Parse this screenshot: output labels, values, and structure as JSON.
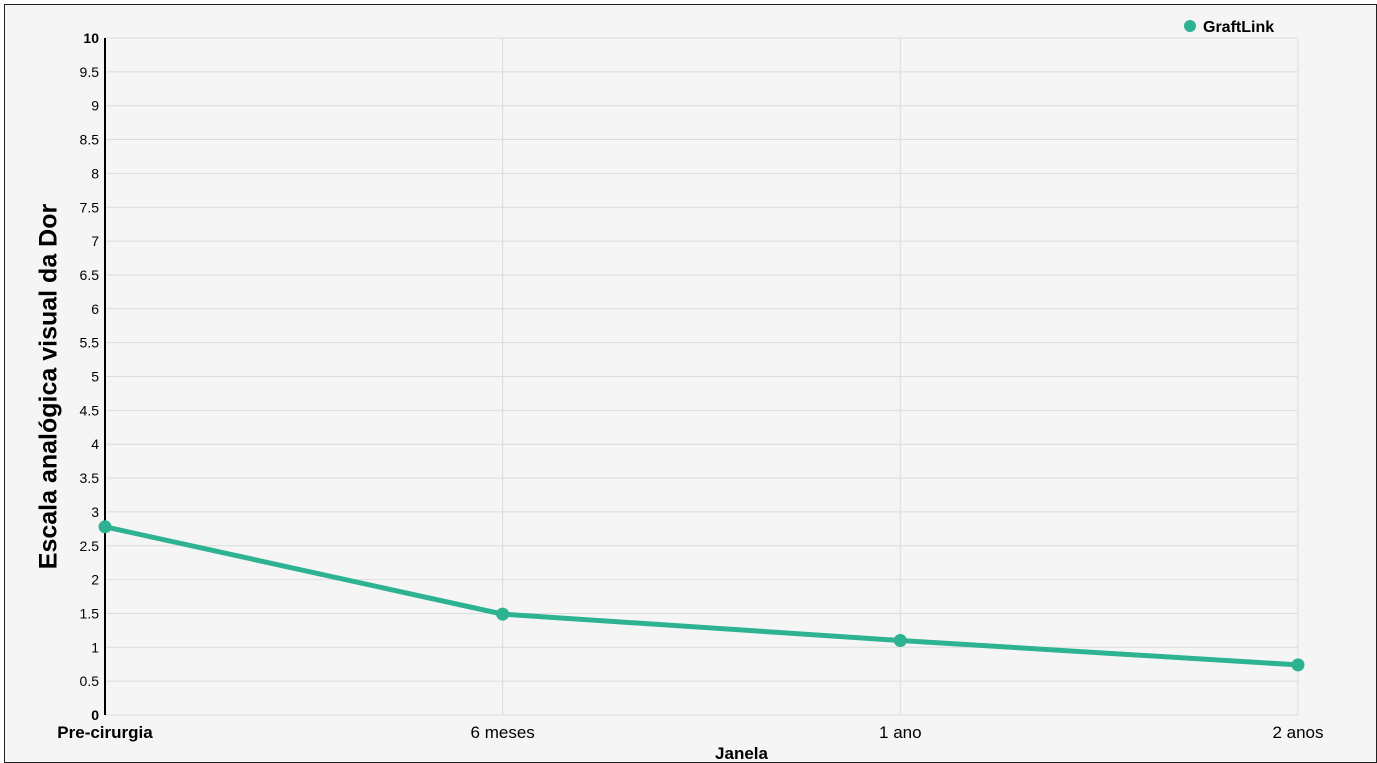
{
  "chart_data": {
    "type": "line",
    "categories": [
      "Pre-cirurgia",
      "6 meses",
      "1 ano",
      "2 anos"
    ],
    "series": [
      {
        "name": "GraftLink",
        "values": [
          2.78,
          1.49,
          1.1,
          0.74
        ],
        "color": "#2db391"
      }
    ],
    "xlabel": "Janela",
    "ylabel": "Escala analógica visual da Dor",
    "ylim": [
      0,
      10
    ],
    "yticks": [
      "0",
      "0.5",
      "1",
      "1.5",
      "2",
      "2.5",
      "3",
      "3.5",
      "4",
      "4.5",
      "5",
      "5.5",
      "6",
      "6.5",
      "7",
      "7.5",
      "8",
      "8.5",
      "9",
      "9.5",
      "10"
    ],
    "grid": true,
    "legend": "top-right"
  }
}
